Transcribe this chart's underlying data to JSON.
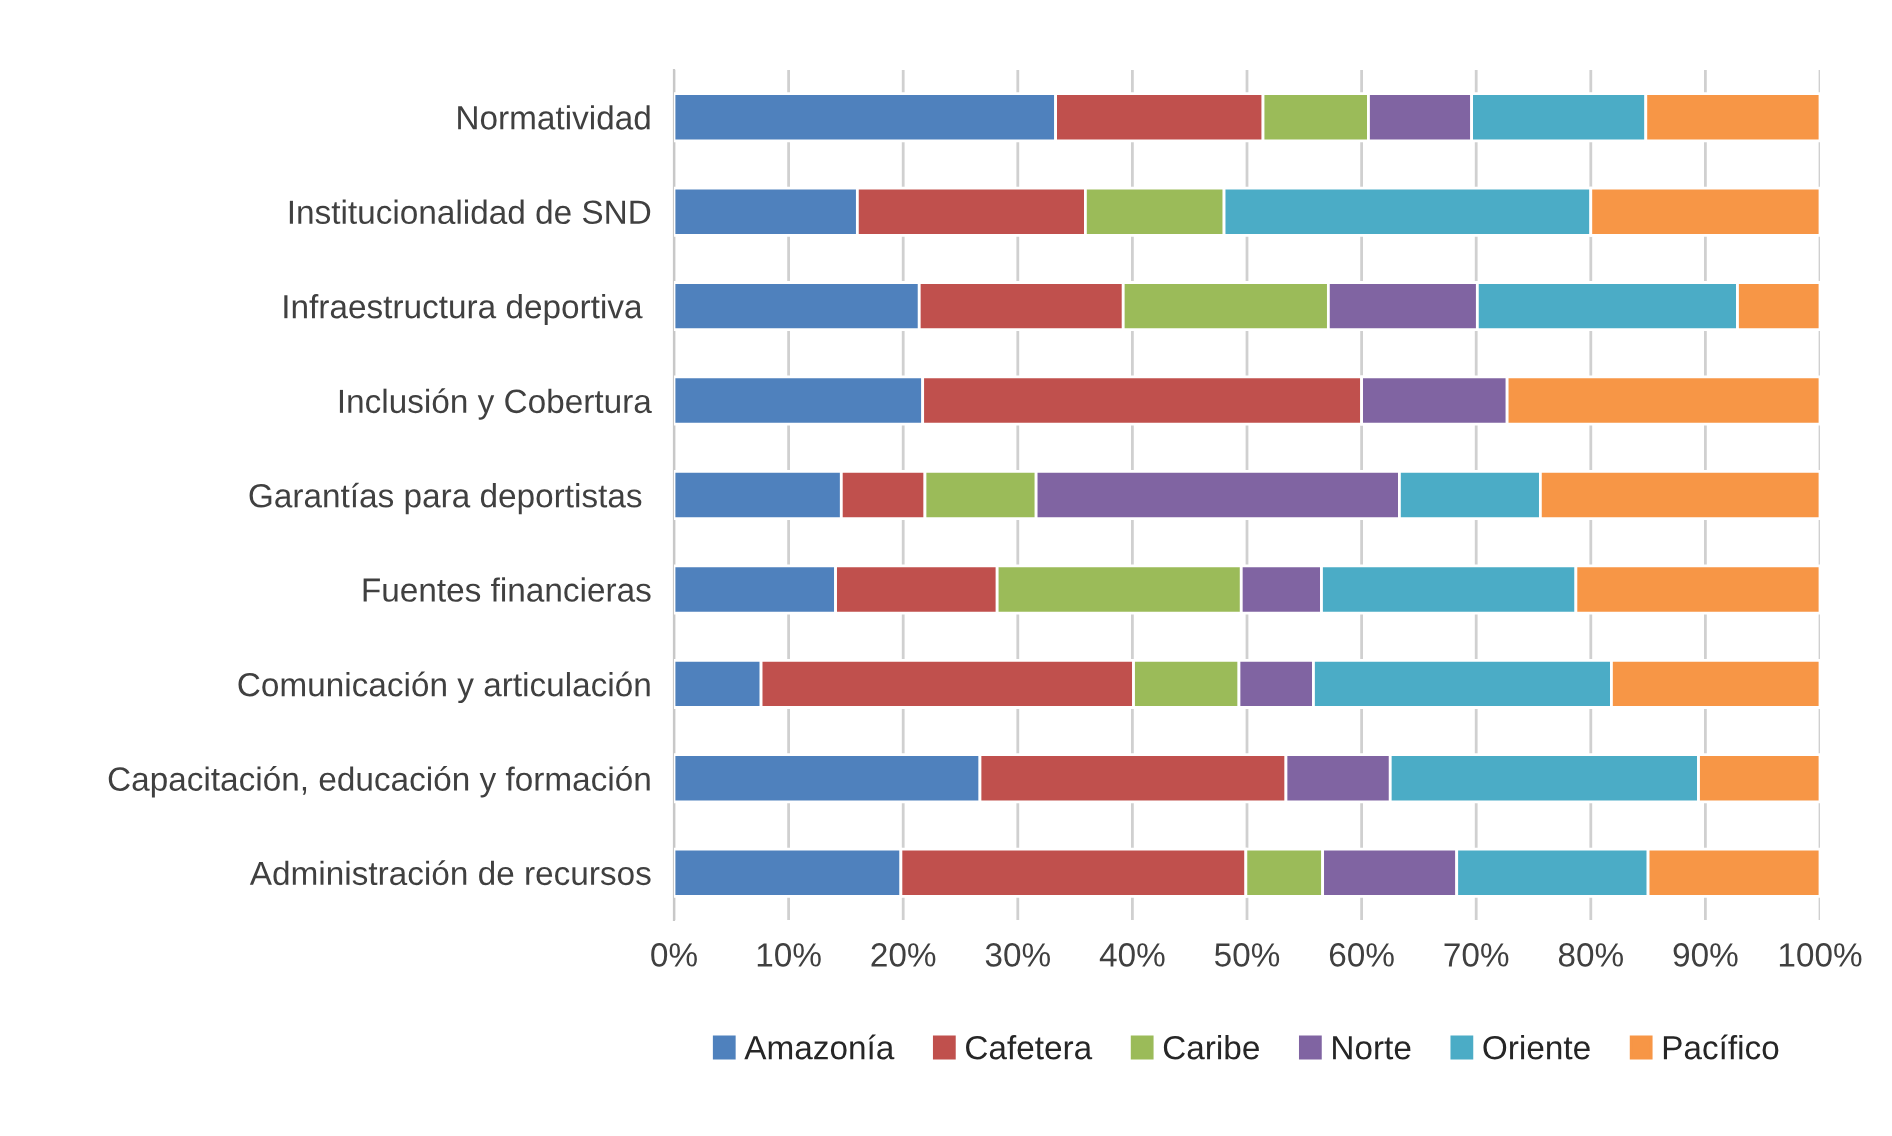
{
  "chart_data": {
    "type": "bar",
    "orientation": "horizontal",
    "stacked": true,
    "categories": [
      "Normatividad",
      "Institucionalidad de SND",
      "Infraestructura deportiva ",
      "Inclusión y Cobertura",
      "Garantías para deportistas ",
      "Fuentes financieras",
      "Comunicación y articulación",
      "Capacitación, educación y formación",
      "Administración de recursos"
    ],
    "series": [
      {
        "name": "Amazonía",
        "color": "#4f81bd",
        "values": [
          33.3,
          16.0,
          21.4,
          21.7,
          14.6,
          14.1,
          7.6,
          26.7,
          19.8
        ]
      },
      {
        "name": "Cafetera",
        "color": "#c0504d",
        "values": [
          18.1,
          19.9,
          17.8,
          38.3,
          7.3,
          14.1,
          32.5,
          26.7,
          30.1
        ]
      },
      {
        "name": "Caribe",
        "color": "#9bbb59",
        "values": [
          9.2,
          12.1,
          17.9,
          null,
          9.7,
          21.3,
          9.2,
          null,
          6.7
        ]
      },
      {
        "name": "Norte",
        "color": "#8064a2",
        "values": [
          9.0,
          null,
          13.0,
          12.7,
          31.7,
          7.0,
          6.5,
          9.1,
          11.7
        ]
      },
      {
        "name": "Oriente",
        "color": "#4bacc6",
        "values": [
          15.2,
          32.0,
          22.7,
          null,
          12.3,
          22.2,
          26.0,
          26.9,
          16.7
        ]
      },
      {
        "name": "Pacífico",
        "color": "#f79646",
        "values": [
          15.2,
          20.0,
          7.2,
          27.3,
          24.4,
          21.3,
          18.2,
          10.6,
          15.0
        ]
      }
    ],
    "xlim": [
      0,
      100
    ],
    "xticks": [
      {
        "value": 0,
        "label": "0%"
      },
      {
        "value": 10,
        "label": "10%"
      },
      {
        "value": 20,
        "label": "20%"
      },
      {
        "value": 30,
        "label": "30%"
      },
      {
        "value": 40,
        "label": "40%"
      },
      {
        "value": 50,
        "label": "50%"
      },
      {
        "value": 60,
        "label": "60%"
      },
      {
        "value": 70,
        "label": "70%"
      },
      {
        "value": 80,
        "label": "80%"
      },
      {
        "value": 90,
        "label": "90%"
      },
      {
        "value": 100,
        "label": "100%"
      }
    ],
    "grid": "x",
    "legend": "bottom"
  }
}
